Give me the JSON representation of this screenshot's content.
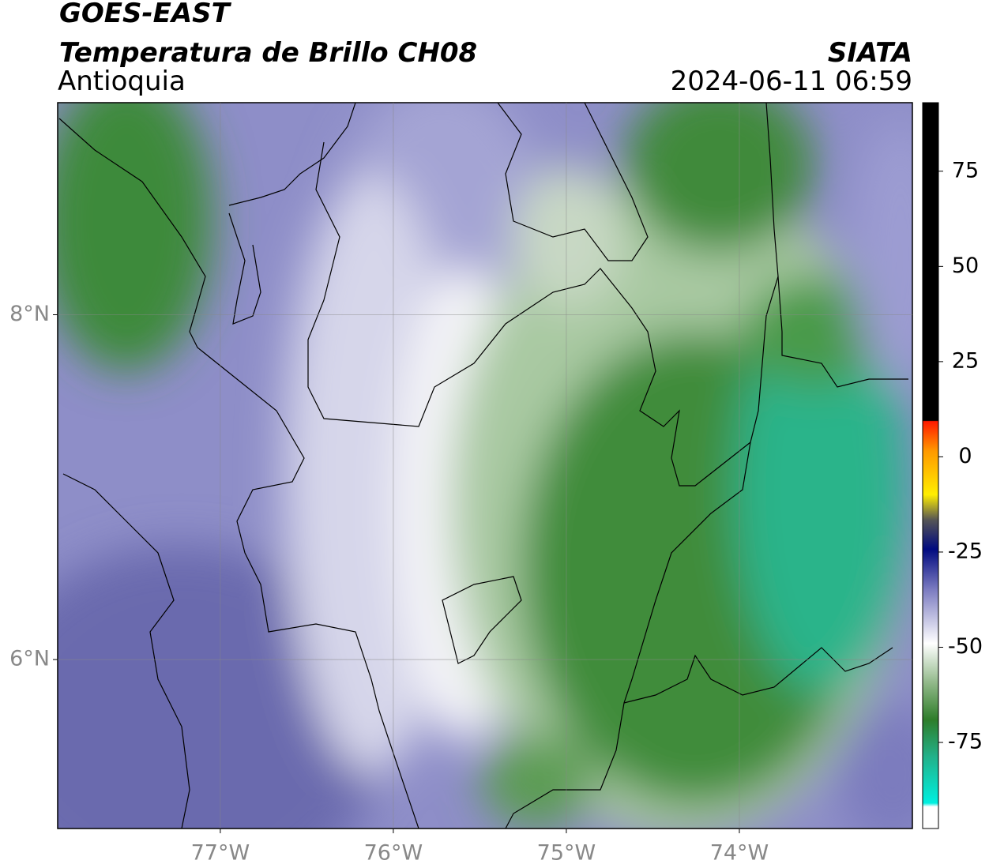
{
  "header": {
    "title": "GOES-EAST",
    "subtitle": "Temperatura de Brillo CH08",
    "region": "Antioquia",
    "source": "SIATA",
    "timestamp": "2024-06-11 06:59"
  },
  "map": {
    "xlim": [
      -77.94,
      -73.0
    ],
    "ylim": [
      5.02,
      9.23
    ],
    "grid": true,
    "xticks": [
      {
        "value": -77,
        "label": "77°W"
      },
      {
        "value": -76,
        "label": "76°W"
      },
      {
        "value": -75,
        "label": "75°W"
      },
      {
        "value": -74,
        "label": "74°W"
      }
    ],
    "yticks": [
      {
        "value": 8,
        "label": "8°N"
      },
      {
        "value": 6,
        "label": "6°N"
      }
    ]
  },
  "colorbar": {
    "lim": [
      -97.6,
      93
    ],
    "ticks": [
      75,
      50,
      25,
      0,
      -25,
      -50,
      -75
    ]
  }
}
